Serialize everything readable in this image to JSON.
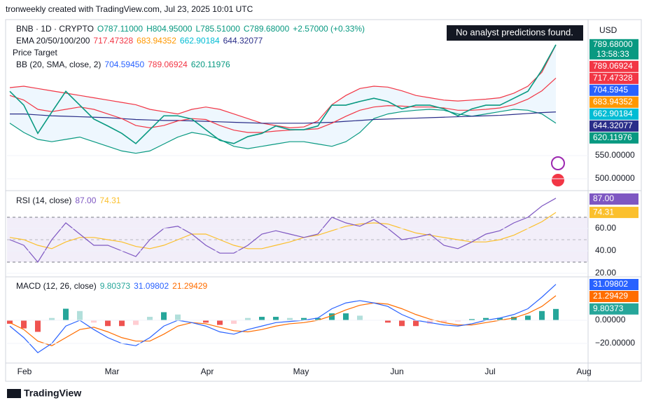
{
  "header": {
    "attribution": "tronweekly created with TradingView.com, Jul 23, 2025 10:01 UTC",
    "symbol": "BNB · 1D · CRYPTO",
    "open": "O787.11000",
    "high": "H804.95000",
    "low": "L785.51000",
    "close": "C789.68000",
    "change": "+2.57000 (+0.33%)",
    "notice": "No analyst predictions found.",
    "currency": "USD"
  },
  "indicators": {
    "ema": {
      "label": "EMA 20/50/100/200",
      "values": [
        "717.47328",
        "683.94352",
        "662.90184",
        "644.32077"
      ],
      "colors": [
        "#f23645",
        "#ff9800",
        "#00bcd4",
        "#2a2e89"
      ]
    },
    "price_target": "Price Target",
    "bb": {
      "label": "BB (20, SMA, close, 2)",
      "values": [
        "704.59450",
        "789.06924",
        "620.11976"
      ],
      "colors": [
        "#2962ff",
        "#f23645",
        "#089981"
      ]
    },
    "rsi": {
      "label": "RSI (14, close)",
      "values": [
        "87.00",
        "74.31"
      ],
      "colors": [
        "#7e57c2",
        "#fbc02d"
      ]
    },
    "macd": {
      "label": "MACD (12, 26, close)",
      "values": [
        "9.80373",
        "31.09802",
        "21.29429"
      ],
      "colors": [
        "#26a69a",
        "#2962ff",
        "#ff6d00"
      ]
    }
  },
  "price_axis": {
    "tags": [
      {
        "value": 789.68,
        "label": "789.68000",
        "color": "#089981"
      },
      789.06924,
      717.47328,
      704.5945,
      683.94352,
      662.90184,
      644.32077,
      620.11976
    ],
    "tag_colors": [
      "#089981",
      "#f23645",
      "#f23645",
      "#2962ff",
      "#ff9800",
      "#00bcd4",
      "#2a2e89",
      "#089981"
    ],
    "countdown": "13:58:33",
    "ticks": [
      {
        "value": 550,
        "label": "550.00000"
      },
      {
        "value": 500,
        "label": "500.00000"
      }
    ]
  },
  "rsi_axis": {
    "tags": [
      {
        "value": 87,
        "label": "87.00"
      },
      74.31
    ],
    "tag_colors": [
      "#7e57c2",
      "#fbc02d"
    ],
    "ticks": [
      {
        "value": 60,
        "label": "60.00"
      },
      {
        "value": 40,
        "label": "40.00"
      },
      {
        "value": 20,
        "label": "20.00"
      }
    ]
  },
  "macd_axis": {
    "tags": [
      31.09802,
      21.29429,
      9.80373
    ],
    "tag_colors": [
      "#2962ff",
      "#ff6d00",
      "#26a69a"
    ],
    "ticks": [
      {
        "value": 0,
        "label": "0.00000"
      },
      {
        "value": -20,
        "label": "−20.00000"
      }
    ]
  },
  "months": [
    "Feb",
    "Mar",
    "Apr",
    "May",
    "Jun",
    "Jul",
    "Aug"
  ],
  "footer": "TradingView",
  "series": {
    "close": [
      689,
      659,
      598,
      644,
      689,
      659,
      629,
      614,
      598,
      576,
      606,
      636,
      636,
      629,
      606,
      583,
      576,
      591,
      598,
      614,
      606,
      606,
      614,
      659,
      659,
      667,
      674,
      667,
      651,
      659,
      659,
      651,
      636,
      651,
      659,
      659,
      674,
      689,
      735,
      789.68
    ],
    "bb_upper": [
      697,
      700,
      695,
      690,
      685,
      680,
      675,
      670,
      665,
      660,
      650,
      645,
      640,
      650,
      655,
      650,
      640,
      630,
      620,
      615,
      610,
      612,
      625,
      660,
      680,
      695,
      700,
      698,
      690,
      680,
      675,
      670,
      668,
      670,
      672,
      675,
      685,
      700,
      730,
      789.06924
    ],
    "bb_lower": [
      620,
      600,
      585,
      580,
      585,
      590,
      580,
      570,
      560,
      555,
      560,
      575,
      590,
      600,
      595,
      585,
      570,
      565,
      570,
      575,
      580,
      580,
      575,
      570,
      580,
      600,
      630,
      640,
      645,
      648,
      650,
      648,
      640,
      635,
      640,
      645,
      650,
      648,
      640,
      620.11976
    ],
    "ema20": [
      680,
      670,
      650,
      645,
      650,
      655,
      650,
      640,
      630,
      615,
      610,
      615,
      625,
      630,
      628,
      615,
      605,
      600,
      600,
      603,
      605,
      606,
      608,
      620,
      635,
      648,
      655,
      658,
      657,
      655,
      655,
      653,
      648,
      648,
      650,
      653,
      660,
      672,
      690,
      717.47328
    ],
    "ema200": [
      640,
      640,
      638,
      636,
      635,
      634,
      633,
      632,
      630,
      628,
      627,
      626,
      626,
      625,
      624,
      623,
      622,
      621,
      620,
      620,
      620,
      620,
      621,
      622,
      624,
      626,
      628,
      629,
      630,
      631,
      632,
      633,
      634,
      635,
      636,
      637,
      639,
      641,
      643,
      644.32077
    ],
    "rsi": [
      50,
      45,
      30,
      50,
      65,
      55,
      45,
      45,
      40,
      35,
      50,
      60,
      62,
      55,
      45,
      38,
      38,
      45,
      55,
      58,
      55,
      52,
      55,
      70,
      65,
      62,
      68,
      60,
      50,
      52,
      55,
      45,
      42,
      48,
      55,
      58,
      65,
      70,
      80,
      87
    ],
    "rsi_ma": [
      52,
      50,
      45,
      42,
      48,
      52,
      52,
      50,
      48,
      44,
      42,
      45,
      50,
      55,
      55,
      50,
      45,
      42,
      42,
      45,
      48,
      52,
      54,
      58,
      62,
      64,
      65,
      64,
      60,
      56,
      54,
      52,
      50,
      48,
      48,
      50,
      54,
      60,
      66,
      74.31
    ],
    "macd": [
      -5,
      -15,
      -28,
      -20,
      -5,
      0,
      -8,
      -15,
      -20,
      -22,
      -15,
      -5,
      0,
      -2,
      -5,
      -10,
      -12,
      -8,
      -5,
      -2,
      -1,
      0,
      2,
      10,
      15,
      17,
      15,
      12,
      5,
      0,
      -2,
      -4,
      -5,
      -3,
      0,
      2,
      5,
      10,
      20,
      31.09802
    ],
    "signal": [
      -2,
      -8,
      -18,
      -22,
      -15,
      -8,
      -6,
      -10,
      -15,
      -18,
      -18,
      -12,
      -5,
      -2,
      -3,
      -6,
      -9,
      -10,
      -8,
      -5,
      -3,
      -2,
      0,
      4,
      9,
      13,
      15,
      14,
      10,
      5,
      1,
      -2,
      -4,
      -4,
      -2,
      0,
      2,
      6,
      12,
      21.29429
    ],
    "hist": [
      -3,
      -7,
      -10,
      2,
      10,
      8,
      -2,
      -5,
      -5,
      -4,
      3,
      7,
      5,
      0,
      -2,
      -4,
      -3,
      2,
      3,
      3,
      2,
      2,
      2,
      6,
      6,
      4,
      0,
      -2,
      -5,
      -5,
      -3,
      -2,
      -1,
      1,
      2,
      2,
      3,
      4,
      8,
      9.80373
    ]
  }
}
